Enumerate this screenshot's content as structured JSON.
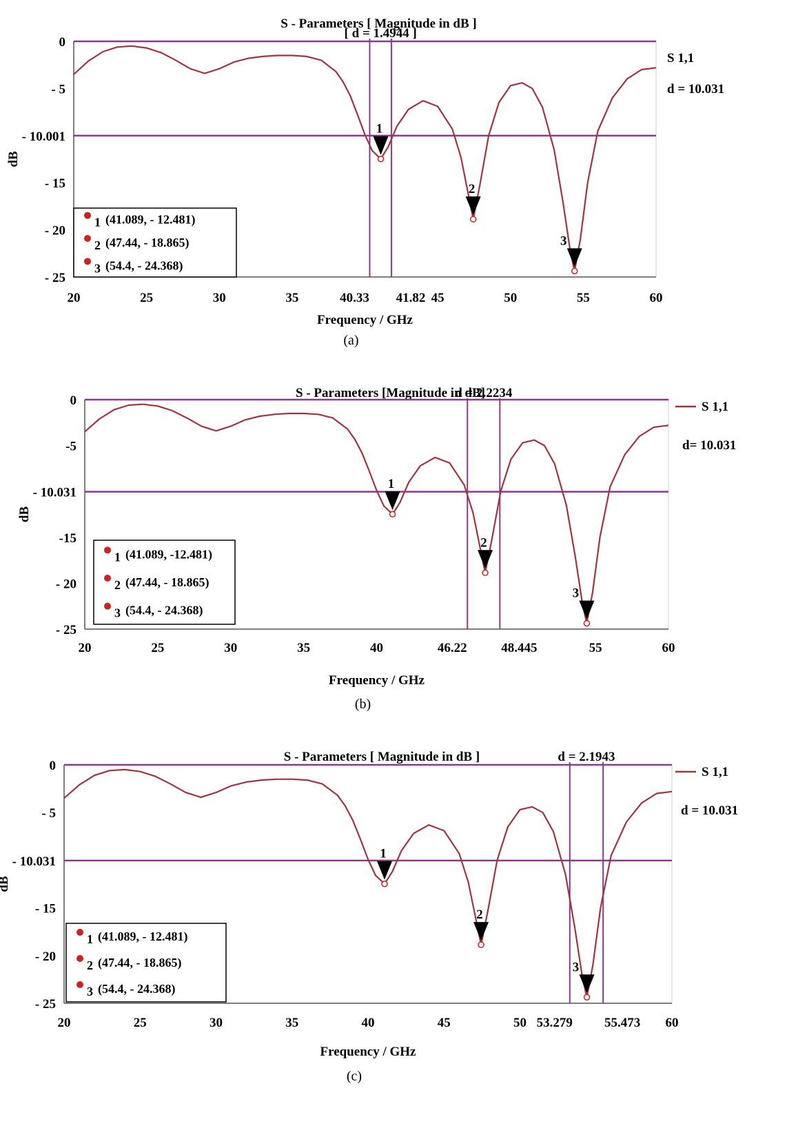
{
  "colors": {
    "curve": "#a0353f",
    "refline": "#8a3a8e",
    "marker": "#000000",
    "dot": "#cc2222",
    "grid": "#d0d0d0"
  },
  "chart_data": [
    {
      "type": "line",
      "caption": "(a)",
      "title": "S - Parameters [ Magnitude in dB ]",
      "xlabel": "Frequency / GHz",
      "ylabel": "dB",
      "xlim": [
        20,
        60
      ],
      "ylim": [
        -25,
        0
      ],
      "x_ticks": [
        "20",
        "25",
        "30",
        "35",
        "45",
        "50",
        "55",
        "60"
      ],
      "x_tick_values": [
        20,
        25,
        30,
        35,
        45,
        50,
        55,
        60
      ],
      "y_ticks": [
        "0",
        "- 5",
        "- 10.001",
        "- 15",
        "- 20",
        "- 25"
      ],
      "y_tick_values": [
        0,
        -5,
        -10.001,
        -15,
        -20,
        -25
      ],
      "series_label": "S 1,1",
      "show_legend_line": false,
      "d_label": "d = 10.031",
      "h_ref": -10.001,
      "bandwidth": {
        "label": "[ d = 1.4944 ]",
        "x1": 40.33,
        "x2": 41.82,
        "x1_label": "40.33",
        "x2_label": "41.82"
      },
      "markers": [
        {
          "id": "1",
          "x": 41.089,
          "y": -12.481,
          "text": "(41.089, - 12.481)"
        },
        {
          "id": "2",
          "x": 47.44,
          "y": -18.865,
          "text": "(47.44, - 18.865)"
        },
        {
          "id": "3",
          "x": 54.4,
          "y": -24.368,
          "text": "(54.4, - 24.368)"
        }
      ]
    },
    {
      "type": "line",
      "caption": "(b)",
      "title": "S - Parameters [Magnitude in dB]",
      "xlabel": "Frequency / GHz",
      "ylabel": "dB",
      "xlim": [
        20,
        60
      ],
      "ylim": [
        -25,
        0
      ],
      "x_ticks": [
        "20",
        "25",
        "30",
        "35",
        "40",
        "55",
        "60"
      ],
      "x_tick_values": [
        20,
        25,
        30,
        35,
        40,
        55,
        60
      ],
      "y_ticks": [
        "0",
        "-5",
        "- 10.031",
        "-15",
        "- 20",
        "- 25"
      ],
      "y_tick_values": [
        0,
        -5,
        -10.031,
        -15,
        -20,
        -25
      ],
      "series_label": "S 1,1",
      "show_legend_line": true,
      "d_label": "d= 10.031",
      "h_ref": -10.031,
      "bandwidth": {
        "label": "d = 2.2234",
        "x1": 46.22,
        "x2": 48.445,
        "x1_label": "46.22",
        "x2_label": "48.445"
      },
      "markers": [
        {
          "id": "1",
          "x": 41.089,
          "y": -12.481,
          "text": "(41.089, -12.481)"
        },
        {
          "id": "2",
          "x": 47.44,
          "y": -18.865,
          "text": "(47.44, - 18.865)"
        },
        {
          "id": "3",
          "x": 54.4,
          "y": -24.368,
          "text": "(54.4, - 24.368)"
        }
      ]
    },
    {
      "type": "line",
      "caption": "(c)",
      "title": "S - Parameters [ Magnitude in dB ]",
      "xlabel": "Frequency / GHz",
      "ylabel": "dB",
      "xlim": [
        20,
        60
      ],
      "ylim": [
        -25,
        0
      ],
      "x_ticks": [
        "20",
        "25",
        "30",
        "35",
        "40",
        "45",
        "50",
        "60"
      ],
      "x_tick_values": [
        20,
        25,
        30,
        35,
        40,
        45,
        50,
        60
      ],
      "y_ticks": [
        "0",
        "- 5",
        "- 10.031",
        "- 15",
        "- 20",
        "- 25"
      ],
      "y_tick_values": [
        0,
        -5,
        -10.031,
        -15,
        -20,
        -25
      ],
      "series_label": "S 1,1",
      "show_legend_line": true,
      "d_label": "d = 10.031",
      "h_ref": -10.031,
      "bandwidth": {
        "label": "d = 2.1943",
        "x1": 53.279,
        "x2": 55.473,
        "x1_label": "53.279",
        "x2_label": "55.473"
      },
      "markers": [
        {
          "id": "1",
          "x": 41.089,
          "y": -12.481,
          "text": "(41.089, - 12.481)"
        },
        {
          "id": "2",
          "x": 47.44,
          "y": -18.865,
          "text": "(47.44, - 18.865)"
        },
        {
          "id": "3",
          "x": 54.4,
          "y": -24.368,
          "text": "(54.4, - 24.368)"
        }
      ]
    }
  ],
  "s11_curve": {
    "x": [
      20,
      21,
      22,
      23,
      24,
      25,
      26,
      27,
      28,
      29,
      30,
      31,
      32,
      33,
      34,
      35,
      36,
      37,
      38,
      38.5,
      39,
      39.5,
      40,
      40.5,
      41.089,
      41.6,
      42.2,
      43,
      44,
      45,
      46,
      46.6,
      47.1,
      47.44,
      47.9,
      48.5,
      49.2,
      50,
      50.8,
      51.5,
      52.2,
      53,
      53.6,
      54.1,
      54.4,
      54.8,
      55.3,
      56,
      57,
      58,
      59,
      60
    ],
    "y": [
      -3.5,
      -2.1,
      -1.1,
      -0.6,
      -0.5,
      -0.7,
      -1.2,
      -2.0,
      -2.9,
      -3.4,
      -2.9,
      -2.2,
      -1.8,
      -1.6,
      -1.5,
      -1.5,
      -1.6,
      -2.0,
      -3.2,
      -4.3,
      -5.8,
      -7.8,
      -9.9,
      -11.6,
      -12.481,
      -11.2,
      -9.0,
      -7.2,
      -6.3,
      -6.9,
      -9.3,
      -12.3,
      -16.2,
      -18.865,
      -15.2,
      -10.0,
      -6.5,
      -4.7,
      -4.4,
      -5.0,
      -7.0,
      -11.5,
      -17.0,
      -22.2,
      -24.368,
      -21.0,
      -15.0,
      -9.5,
      -6.0,
      -4.0,
      -3.0,
      -2.8
    ]
  }
}
